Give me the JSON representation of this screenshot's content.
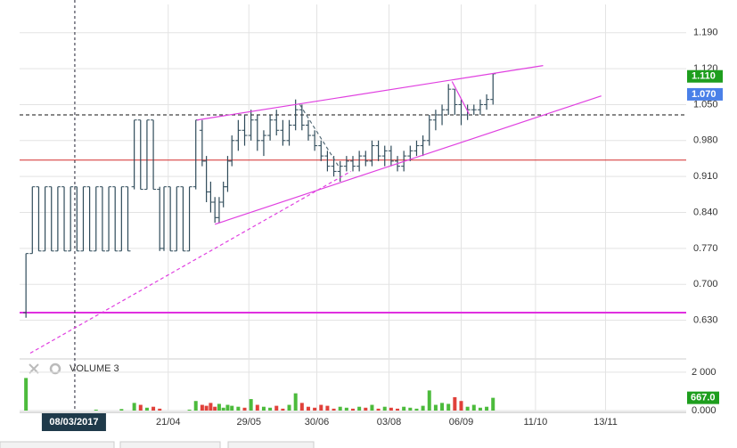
{
  "chart_data": {
    "type": "ohlc",
    "bar_color": "#2f4b5a",
    "x": [
      -23,
      -20,
      -17,
      -14,
      -11,
      -8,
      -5,
      -2,
      1,
      4,
      7,
      10,
      13,
      16,
      19,
      22,
      25,
      28,
      31,
      34,
      37,
      40,
      42,
      45,
      48,
      51,
      54,
      57,
      60,
      62,
      64,
      66,
      68,
      70,
      72,
      74,
      77,
      80,
      83,
      86,
      89,
      92,
      95,
      98,
      101,
      104,
      107,
      110,
      113,
      116,
      119,
      122,
      125,
      128,
      131,
      134,
      137,
      140,
      143,
      146,
      149,
      152,
      155,
      158,
      161,
      164,
      167,
      170,
      173,
      176,
      179,
      182,
      185,
      188,
      191,
      194,
      197
    ],
    "open": [
      0.645,
      0.76,
      0.89,
      0.765,
      0.89,
      0.765,
      0.89,
      0.765,
      0.89,
      0.765,
      0.89,
      0.765,
      0.89,
      0.765,
      0.89,
      0.765,
      0.89,
      0.89,
      1.02,
      0.885,
      1.02,
      0.885,
      0.77,
      0.89,
      0.765,
      0.89,
      0.765,
      0.89,
      1.0,
      0.94,
      0.88,
      0.86,
      0.83,
      0.86,
      0.89,
      0.94,
      0.98,
      1.0,
      0.99,
      1.02,
      0.98,
      0.99,
      1.02,
      1.0,
      0.98,
      1.01,
      1.04,
      1.01,
      0.99,
      0.97,
      0.95,
      0.93,
      0.92,
      0.93,
      0.94,
      0.93,
      0.95,
      0.94,
      0.97,
      0.95,
      0.96,
      0.94,
      0.93,
      0.95,
      0.96,
      0.97,
      0.98,
      1.02,
      1.03,
      1.04,
      1.08,
      1.05,
      1.03,
      1.04,
      1.04,
      1.05,
      1.06
    ],
    "high": [
      0.76,
      0.89,
      0.89,
      0.89,
      0.89,
      0.89,
      0.89,
      0.89,
      0.89,
      0.89,
      0.89,
      0.89,
      0.89,
      0.89,
      0.89,
      0.89,
      0.89,
      1.02,
      1.02,
      1.02,
      1.02,
      0.89,
      0.89,
      0.89,
      0.89,
      0.89,
      0.89,
      1.02,
      1.02,
      0.95,
      0.9,
      0.87,
      0.87,
      0.9,
      0.95,
      0.99,
      1.02,
      1.03,
      1.04,
      1.03,
      1.0,
      1.03,
      1.04,
      1.02,
      1.02,
      1.06,
      1.05,
      1.02,
      1.0,
      0.98,
      0.96,
      0.95,
      0.94,
      0.95,
      0.95,
      0.96,
      0.96,
      0.98,
      0.98,
      0.97,
      0.97,
      0.95,
      0.96,
      0.97,
      0.98,
      0.99,
      1.03,
      1.04,
      1.05,
      1.09,
      1.08,
      1.06,
      1.05,
      1.05,
      1.06,
      1.07,
      1.11
    ],
    "low": [
      0.635,
      0.76,
      0.765,
      0.765,
      0.765,
      0.765,
      0.765,
      0.765,
      0.765,
      0.765,
      0.765,
      0.765,
      0.765,
      0.765,
      0.765,
      0.765,
      0.765,
      0.885,
      0.885,
      0.885,
      0.885,
      0.765,
      0.765,
      0.765,
      0.765,
      0.765,
      0.765,
      0.885,
      0.93,
      0.86,
      0.84,
      0.82,
      0.82,
      0.85,
      0.88,
      0.93,
      0.96,
      0.97,
      0.98,
      0.96,
      0.95,
      0.98,
      0.99,
      0.97,
      0.97,
      1.0,
      1.0,
      0.98,
      0.96,
      0.94,
      0.92,
      0.91,
      0.9,
      0.92,
      0.92,
      0.92,
      0.93,
      0.93,
      0.94,
      0.93,
      0.93,
      0.92,
      0.92,
      0.94,
      0.95,
      0.95,
      0.97,
      1.0,
      1.01,
      1.03,
      1.03,
      1.01,
      1.02,
      1.03,
      1.03,
      1.04,
      1.05
    ],
    "close": [
      0.76,
      0.89,
      0.765,
      0.89,
      0.765,
      0.89,
      0.765,
      0.89,
      0.765,
      0.89,
      0.765,
      0.89,
      0.765,
      0.89,
      0.765,
      0.89,
      0.765,
      1.02,
      0.885,
      1.02,
      0.885,
      0.77,
      0.89,
      0.765,
      0.89,
      0.765,
      0.89,
      1.02,
      0.94,
      0.88,
      0.86,
      0.83,
      0.86,
      0.89,
      0.94,
      0.98,
      1.0,
      0.99,
      1.02,
      0.98,
      0.99,
      1.02,
      1.0,
      0.98,
      1.01,
      1.04,
      1.01,
      0.99,
      0.97,
      0.95,
      0.93,
      0.92,
      0.93,
      0.94,
      0.93,
      0.95,
      0.94,
      0.97,
      0.95,
      0.96,
      0.94,
      0.93,
      0.95,
      0.96,
      0.97,
      0.98,
      1.02,
      1.03,
      1.04,
      1.08,
      1.05,
      1.03,
      1.04,
      1.04,
      1.05,
      1.06,
      1.11
    ],
    "volume": [
      1700,
      0,
      0,
      0,
      0,
      0,
      0,
      0,
      0,
      0,
      0,
      50,
      0,
      0,
      0,
      80,
      0,
      400,
      300,
      150,
      200,
      100,
      0,
      0,
      0,
      0,
      50,
      500,
      300,
      250,
      400,
      200,
      350,
      150,
      300,
      250,
      200,
      150,
      600,
      300,
      200,
      150,
      250,
      100,
      300,
      900,
      400,
      200,
      150,
      300,
      250,
      100,
      200,
      150,
      100,
      200,
      150,
      300,
      100,
      200,
      150,
      100,
      200,
      150,
      100,
      250,
      1050,
      300,
      400,
      350,
      700,
      500,
      200,
      300,
      150,
      200,
      667
    ],
    "volume_up_color": "#4cbb3c",
    "volume_down_color": "#e0413a",
    "volume_label": "VOLUME 3",
    "xlim": [
      -26,
      288
    ],
    "xticks": [
      {
        "value": 44,
        "label": "21/04"
      },
      {
        "value": 82,
        "label": "29/05"
      },
      {
        "value": 114,
        "label": "30/06"
      },
      {
        "value": 148,
        "label": "03/08"
      },
      {
        "value": 182,
        "label": "06/09"
      },
      {
        "value": 217,
        "label": "11/10"
      },
      {
        "value": 250,
        "label": "13/11"
      }
    ],
    "ylim": [
      0.56,
      1.245
    ],
    "yticks": [
      {
        "value": 0.63,
        "label": "0.630"
      },
      {
        "value": 0.7,
        "label": "0.700"
      },
      {
        "value": 0.77,
        "label": "0.770"
      },
      {
        "value": 0.84,
        "label": "0.840"
      },
      {
        "value": 0.91,
        "label": "0.910"
      },
      {
        "value": 0.98,
        "label": "0.980"
      },
      {
        "value": 1.05,
        "label": "1.050"
      },
      {
        "value": 1.12,
        "label": "1.120"
      },
      {
        "value": 1.19,
        "label": "1.190"
      }
    ],
    "y2lim": [
      0,
      2600
    ],
    "y2ticks": [
      {
        "value": 0,
        "label": "0.000"
      },
      {
        "value": 2000,
        "label": "2 000"
      }
    ],
    "grid": true,
    "cursor": {
      "x": 0,
      "label": "08/03/2017"
    },
    "price_markers": [
      {
        "value": 1.105,
        "label": "1.110",
        "color": "#1e9e1e"
      },
      {
        "value": 1.07,
        "label": "1.070",
        "color": "#4a80e8"
      }
    ],
    "volume_marker": {
      "value": 667,
      "label": "667.0",
      "color": "#1e9e1e"
    },
    "hlines": [
      {
        "value": 1.03,
        "color": "#111111",
        "dash": true,
        "width": 1
      },
      {
        "value": 0.942,
        "color": "#d42a2a",
        "dash": false,
        "width": 1
      },
      {
        "value": 0.645,
        "color": "#e030e0",
        "dash": false,
        "width": 2
      }
    ],
    "trendlines": [
      {
        "x": [
          57.6,
          220.6
        ],
        "y": [
          1.02,
          1.126
        ],
        "color": "#e040e0",
        "dash": false
      },
      {
        "x": [
          66,
          248
        ],
        "y": [
          0.817,
          1.067
        ],
        "color": "#e040e0",
        "dash": false
      },
      {
        "x": [
          -21,
          130
        ],
        "y": [
          0.566,
          0.92
        ],
        "color": "#e040e0",
        "dash": true
      },
      {
        "x": [
          177.7,
          185.7
        ],
        "y": [
          1.095,
          1.032
        ],
        "color": "#e040e0",
        "dash": false
      },
      {
        "x": [
          106,
          125
        ],
        "y": [
          1.05,
          0.925
        ],
        "color": "#556b77",
        "dash": true
      }
    ]
  }
}
